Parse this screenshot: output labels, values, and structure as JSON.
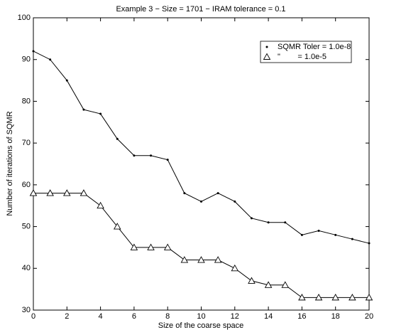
{
  "chart_data": {
    "type": "line",
    "title": "Example 3 − Size = 1701 − IRAM tolerance = 0.1",
    "x_label": "Size of the coarse space",
    "y_label": "Number of iterations of SQMR",
    "x": [
      0,
      1,
      2,
      3,
      4,
      5,
      6,
      7,
      8,
      9,
      10,
      11,
      12,
      13,
      14,
      15,
      16,
      17,
      18,
      19,
      20
    ],
    "series": [
      {
        "name": "SQMR Toler = 1.0e-8",
        "color": "#000000",
        "marker": "point",
        "values": [
          92,
          90,
          85,
          78,
          77,
          71,
          67,
          67,
          66,
          58,
          56,
          58,
          56,
          52,
          51,
          51,
          48,
          49,
          48,
          47,
          46
        ]
      },
      {
        "name": "\"        = 1.0e-5",
        "color": "#000000",
        "marker": "triangle",
        "values": [
          58,
          58,
          58,
          58,
          55,
          50,
          45,
          45,
          45,
          42,
          42,
          42,
          40,
          37,
          36,
          36,
          33,
          33,
          33,
          33,
          33
        ]
      }
    ],
    "xlim": [
      0,
      20
    ],
    "xticks": [
      0,
      2,
      4,
      6,
      8,
      10,
      12,
      14,
      16,
      18,
      20
    ],
    "ylim": [
      30,
      100
    ],
    "yticks": [
      30,
      40,
      50,
      60,
      70,
      80,
      90,
      100
    ],
    "grid": false,
    "legend": "upper right"
  }
}
